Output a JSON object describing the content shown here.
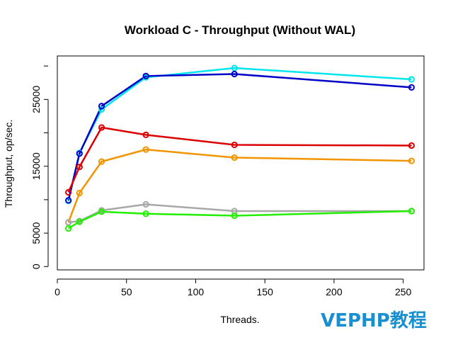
{
  "chart_data": {
    "type": "line",
    "title": "Workload C - Throughput (Without WAL)",
    "xlabel": "Threads.",
    "ylabel": "Throughput, op/sec.",
    "xlim": [
      0,
      265
    ],
    "ylim": [
      -500,
      31500
    ],
    "xticks": [
      0,
      50,
      100,
      150,
      200,
      250
    ],
    "yticks": [
      0,
      5000,
      15000,
      25000
    ],
    "grid": false,
    "legend": "none",
    "x": [
      8,
      16,
      32,
      64,
      128,
      256
    ],
    "series": [
      {
        "color": "#00e5ee",
        "values": [
          9800,
          17000,
          23500,
          28300,
          29700,
          28000
        ]
      },
      {
        "color": "#0000c8",
        "values": [
          9900,
          16900,
          24000,
          28500,
          28800,
          26800
        ]
      },
      {
        "color": "#dd0000",
        "values": [
          11100,
          14900,
          20800,
          19700,
          18200,
          18100
        ]
      },
      {
        "color": "#f09500",
        "values": [
          6600,
          11000,
          15700,
          17500,
          16300,
          15800
        ]
      },
      {
        "color": "#a8a8a8",
        "values": [
          6600,
          6800,
          8400,
          9300,
          8300,
          8300
        ]
      },
      {
        "color": "#22ee00",
        "values": [
          5700,
          6700,
          8200,
          7900,
          7600,
          8300
        ]
      }
    ]
  },
  "watermark": "VEPHP教程"
}
